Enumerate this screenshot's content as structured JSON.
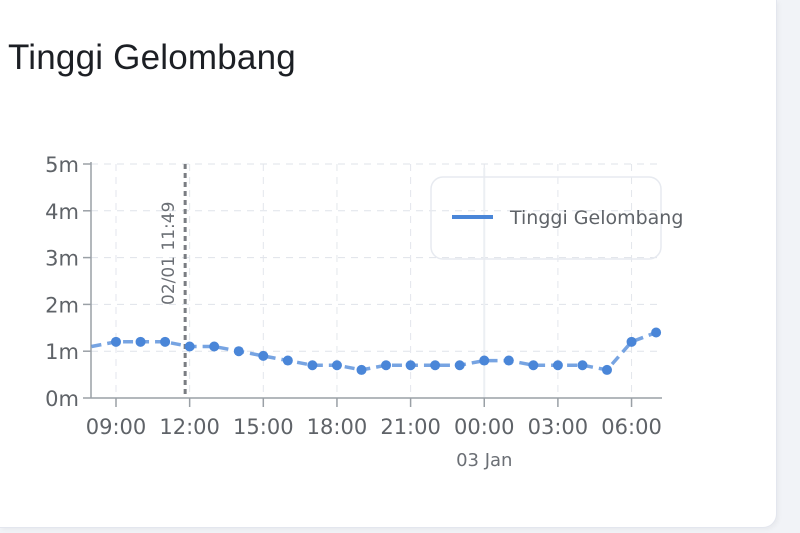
{
  "card": {
    "title": "Tinggi Gelombang"
  },
  "chart_data": {
    "type": "line",
    "title": "Tinggi Gelombang",
    "y_unit": "m",
    "ylim": [
      0,
      5
    ],
    "y_ticks": [
      "0m",
      "1m",
      "2m",
      "3m",
      "4m",
      "5m"
    ],
    "x_ticks": [
      "09:00",
      "12:00",
      "15:00",
      "18:00",
      "21:00",
      "00:00",
      "03:00",
      "06:00"
    ],
    "x_date_label": "03 Jan",
    "marker_label": "02/01 11:49",
    "grid": true,
    "legend_position": "top-right",
    "series": [
      {
        "name": "Tinggi Gelombang",
        "color": "#4a86d8",
        "x": [
          "02/01 08:00",
          "02/01 09:00",
          "02/01 10:00",
          "02/01 11:00",
          "02/01 12:00",
          "02/01 13:00",
          "02/01 14:00",
          "02/01 15:00",
          "02/01 16:00",
          "02/01 17:00",
          "02/01 18:00",
          "02/01 19:00",
          "02/01 20:00",
          "02/01 21:00",
          "02/01 22:00",
          "02/01 23:00",
          "03/01 00:00",
          "03/01 01:00",
          "03/01 02:00",
          "03/01 03:00",
          "03/01 04:00",
          "03/01 05:00",
          "03/01 06:00",
          "03/01 07:00"
        ],
        "values": [
          1.1,
          1.2,
          1.2,
          1.2,
          1.1,
          1.1,
          1.0,
          0.9,
          0.8,
          0.7,
          0.7,
          0.6,
          0.7,
          0.7,
          0.7,
          0.7,
          0.8,
          0.8,
          0.7,
          0.7,
          0.7,
          0.6,
          1.2,
          1.4
        ]
      }
    ]
  }
}
